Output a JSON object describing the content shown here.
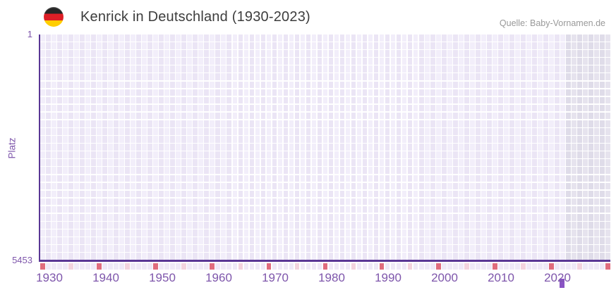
{
  "header": {
    "flag_icon": "germany-flag-icon",
    "title": "Kenrick in Deutschland (1930-2023)",
    "source": "Quelle: Baby-Vornamen.de"
  },
  "chart_data": {
    "type": "heatmap",
    "title": "Kenrick in Deutschland (1930-2023)",
    "name": "Kenrick",
    "region": "Deutschland",
    "ylabel": "Platz",
    "y_axis": {
      "top_tick": "1",
      "bottom_tick": "5453",
      "min_rank": 1,
      "max_rank": 5453,
      "rows": 29,
      "direction": "rank 1 at top, rank 5453 at bottom"
    },
    "x_axis": {
      "first_year": 1930,
      "last_year": 2030,
      "tick_labels": [
        "1930",
        "1940",
        "1950",
        "1960",
        "1970",
        "1980",
        "1990",
        "2000",
        "2010",
        "2020"
      ],
      "decade_marker_every": 10,
      "half_decade_marker_every": 5
    },
    "points": [
      {
        "year": 2022,
        "rank": 5453
      }
    ],
    "shaded_region": {
      "from_year": 2023,
      "to_year": 2030
    },
    "grid": "on",
    "legend": "none",
    "colors": {
      "axis": "#5a3795",
      "tick_text": "#7e56ab",
      "cell_light_a": "#f2eefa",
      "cell_light_b": "#ebe5f5",
      "cell_shaded_a": "#e6e3ee",
      "cell_shaded_b": "#dfdce9",
      "marker_default": "#efe9f7",
      "marker_half_decade": "#f3d3de",
      "marker_decade": "#e06c7d",
      "data_point": "#8a54c4",
      "title_text": "#3d3d3d",
      "source_text": "#999999",
      "flag_black": "#262626",
      "flag_red": "#dd1f26",
      "flag_gold": "#ffce00"
    }
  }
}
